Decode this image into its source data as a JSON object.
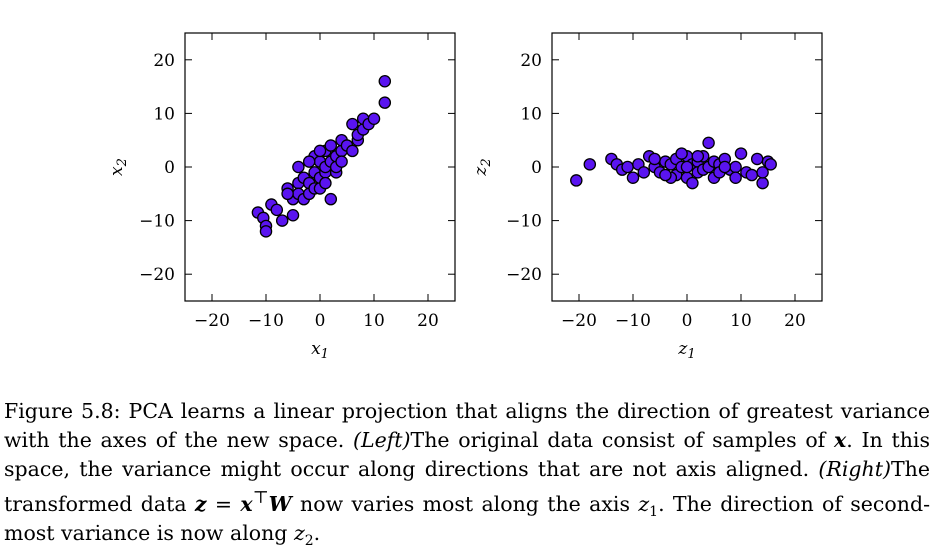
{
  "caption": {
    "label": "Figure 5.8:",
    "text1": " PCA learns a linear projection that aligns the direction of greatest variance with the axes of the new space. ",
    "left_tag": "(Left)",
    "text2": "The original data consist of samples of ",
    "x_sym": "x",
    "text3": ". In this space, the variance might occur along directions that are not axis aligned. ",
    "right_tag": "(Right)",
    "text4": "The transformed data ",
    "z_sym": "z",
    "eq": " = ",
    "x_sym2": "x",
    "transpose": "⊤",
    "w_sym": "W",
    "text5": " now varies most along the axis ",
    "z1_var": "z",
    "z1_sub": "1",
    "text6": ". The direction of second-most variance is now along ",
    "z2_var": "z",
    "z2_sub": "2",
    "text7": "."
  },
  "chart_data": [
    {
      "type": "scatter",
      "panel": "left",
      "xlabel": "x1",
      "ylabel": "x2",
      "xlim": [
        -25,
        25
      ],
      "ylim": [
        -25,
        25
      ],
      "xticks": [
        "−20",
        "−10",
        "0",
        "10",
        "20"
      ],
      "yticks": [
        "20",
        "10",
        "0",
        "−10",
        "−20"
      ],
      "grid": false,
      "marker_color": "#5a14f0",
      "points": [
        [
          -11.5,
          -8.5
        ],
        [
          -10.5,
          -9.5
        ],
        [
          -10,
          -11
        ],
        [
          -10,
          -12
        ],
        [
          -9,
          -7
        ],
        [
          -7,
          -10
        ],
        [
          -6,
          -4
        ],
        [
          -5,
          -9
        ],
        [
          -5,
          -6
        ],
        [
          -4,
          -3
        ],
        [
          -4,
          -5
        ],
        [
          -3,
          -2
        ],
        [
          -3,
          -6
        ],
        [
          -2,
          -3
        ],
        [
          -2,
          -5
        ],
        [
          -1,
          2
        ],
        [
          -1,
          -1
        ],
        [
          -1,
          -4
        ],
        [
          0,
          -2
        ],
        [
          0,
          1
        ],
        [
          0,
          -4
        ],
        [
          1,
          -1
        ],
        [
          1,
          0
        ],
        [
          1,
          3
        ],
        [
          1,
          -3
        ],
        [
          2,
          1
        ],
        [
          2,
          -6
        ],
        [
          2,
          4
        ],
        [
          3,
          2
        ],
        [
          3,
          -1
        ],
        [
          3,
          0
        ],
        [
          4,
          3
        ],
        [
          4,
          1
        ],
        [
          4,
          5
        ],
        [
          5,
          4
        ],
        [
          6,
          3
        ],
        [
          6,
          8
        ],
        [
          7,
          5
        ],
        [
          7,
          6
        ],
        [
          8,
          7
        ],
        [
          8,
          9
        ],
        [
          9,
          8
        ],
        [
          10,
          9
        ],
        [
          12,
          16
        ],
        [
          12,
          12
        ],
        [
          -4,
          0
        ],
        [
          -2,
          1
        ],
        [
          0,
          3
        ],
        [
          -6,
          -5
        ],
        [
          -8,
          -8
        ]
      ]
    },
    {
      "type": "scatter",
      "panel": "right",
      "xlabel": "z1",
      "ylabel": "z2",
      "xlim": [
        -25,
        25
      ],
      "ylim": [
        -25,
        25
      ],
      "xticks": [
        "−20",
        "−10",
        "0",
        "10",
        "20"
      ],
      "yticks": [
        "20",
        "10",
        "0",
        "−10",
        "−20"
      ],
      "grid": false,
      "marker_color": "#5a14f0",
      "points": [
        [
          -20.5,
          -2.5
        ],
        [
          -18,
          0.5
        ],
        [
          -14,
          1.5
        ],
        [
          -13,
          0.5
        ],
        [
          -12,
          -0.5
        ],
        [
          -11,
          0
        ],
        [
          -10,
          -2
        ],
        [
          -9,
          0.5
        ],
        [
          -8,
          -1
        ],
        [
          -7,
          2
        ],
        [
          -6,
          0
        ],
        [
          -5,
          -1
        ],
        [
          -4,
          1
        ],
        [
          -3,
          0.5
        ],
        [
          -2,
          -1.5
        ],
        [
          -2,
          1.5
        ],
        [
          -1,
          0
        ],
        [
          0,
          -2
        ],
        [
          0,
          2
        ],
        [
          1,
          0.5
        ],
        [
          1,
          -3
        ],
        [
          2,
          1
        ],
        [
          2,
          -1
        ],
        [
          3,
          2
        ],
        [
          3,
          -0.5
        ],
        [
          4,
          4.5
        ],
        [
          4,
          0
        ],
        [
          5,
          1
        ],
        [
          5,
          -2
        ],
        [
          6,
          0.5
        ],
        [
          6,
          -1
        ],
        [
          7,
          1.5
        ],
        [
          8,
          -0.5
        ],
        [
          9,
          0
        ],
        [
          10,
          2.5
        ],
        [
          11,
          -1
        ],
        [
          12,
          -1.5
        ],
        [
          13,
          1.5
        ],
        [
          14,
          -3
        ],
        [
          15,
          1
        ],
        [
          14,
          -1
        ],
        [
          15.5,
          0.5
        ],
        [
          -3,
          -2
        ],
        [
          -1,
          2.5
        ],
        [
          2,
          2
        ],
        [
          -6,
          1.5
        ],
        [
          7,
          0
        ],
        [
          9,
          -2
        ],
        [
          -4,
          -1.5
        ],
        [
          0,
          0
        ]
      ]
    }
  ]
}
